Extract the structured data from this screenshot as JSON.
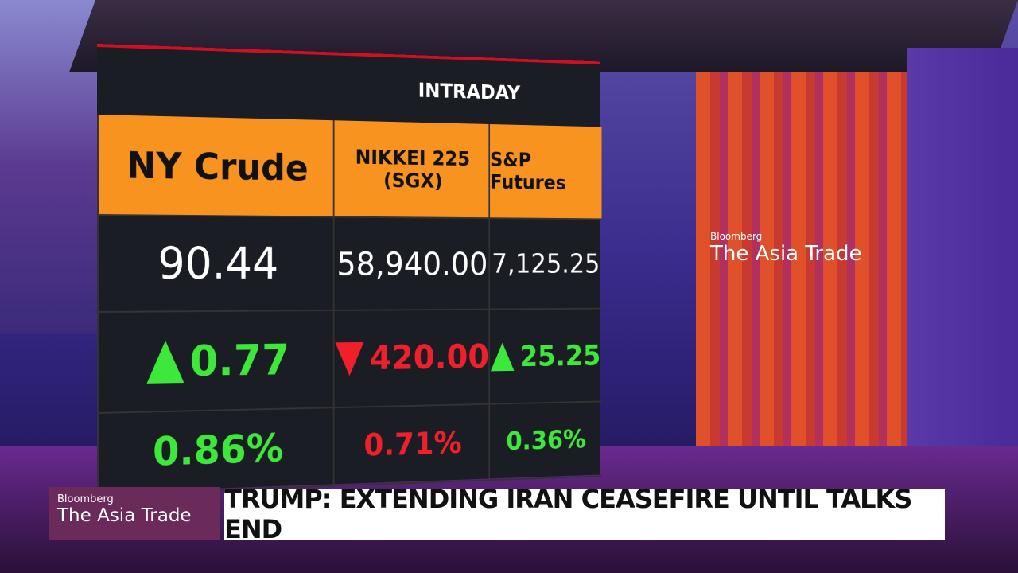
{
  "board": {
    "header": "INTRADAY",
    "columns": [
      {
        "name": [
          "NY Crude"
        ],
        "price": "90.44",
        "change": "0.77",
        "direction": "up",
        "percent": "0.86%"
      },
      {
        "name": [
          "NIKKEI 225",
          "(SGX)"
        ],
        "price": "58,940.00",
        "change": "420.00",
        "direction": "down",
        "percent": "0.71%"
      },
      {
        "name": [
          "S&P Futures"
        ],
        "price": "7,125.25",
        "change": "25.25",
        "direction": "up",
        "percent": "0.36%"
      }
    ],
    "colors": {
      "up": "#3ee83a",
      "down": "#f0202a"
    }
  },
  "wall": {
    "brand": "Bloomberg",
    "show": "The Asia Trade"
  },
  "lower_third": {
    "brand": "Bloomberg",
    "show": "The Asia Trade",
    "headline": "TRUMP: EXTENDING IRAN CEASEFIRE UNTIL TALKS END"
  }
}
